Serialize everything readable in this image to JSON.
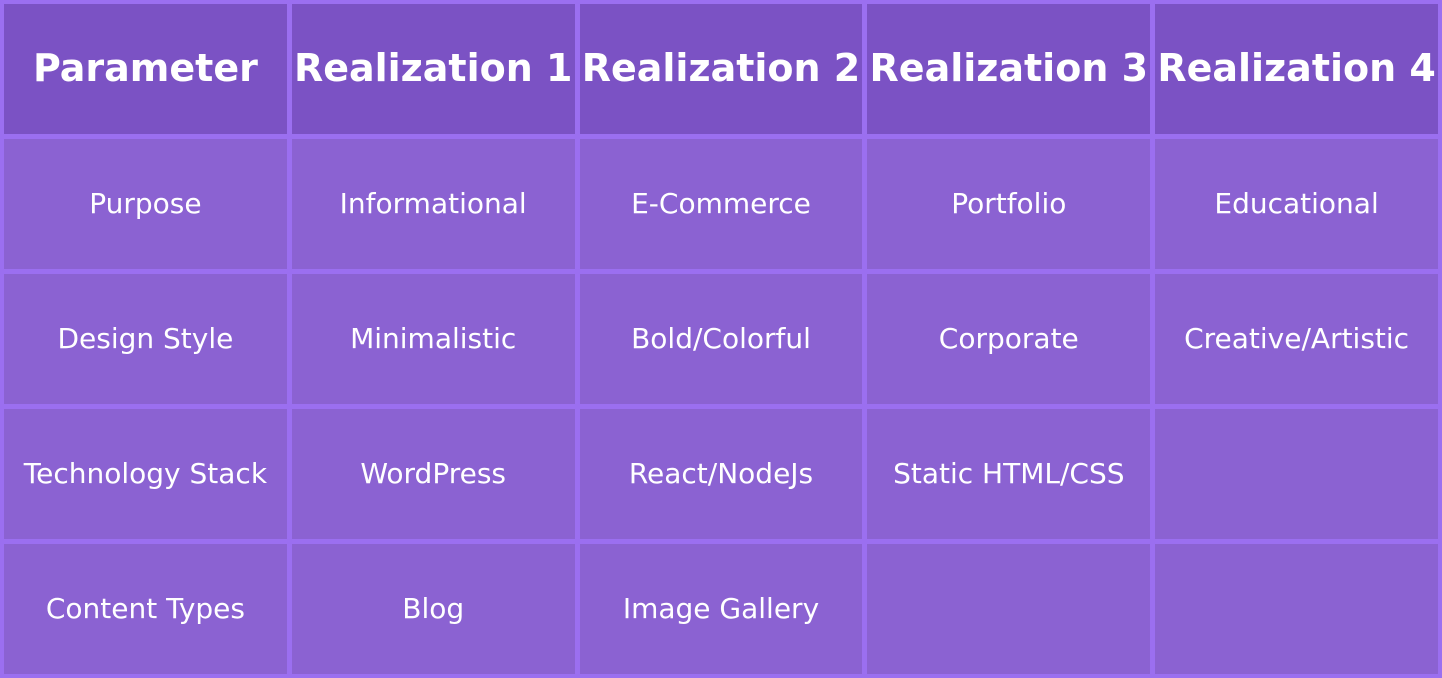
{
  "table": {
    "headers": [
      "Parameter",
      "Realization 1",
      "Realization 2",
      "Realization 3",
      "Realization 4"
    ],
    "rows": [
      [
        "Purpose",
        "Informational",
        "E-Commerce",
        "Portfolio",
        "Educational"
      ],
      [
        "Design Style",
        "Minimalistic",
        "Bold/Colorful",
        "Corporate",
        "Creative/Artistic"
      ],
      [
        "Technology Stack",
        "WordPress",
        "React/NodeJs",
        "Static HTML/CSS",
        ""
      ],
      [
        "Content Types",
        "Blog",
        "Image Gallery",
        "",
        ""
      ]
    ]
  },
  "colors": {
    "background": "#9b6ff0",
    "header_bg": "#7b52c4",
    "cell_bg": "#8b62d2",
    "text": "#ffffff"
  }
}
